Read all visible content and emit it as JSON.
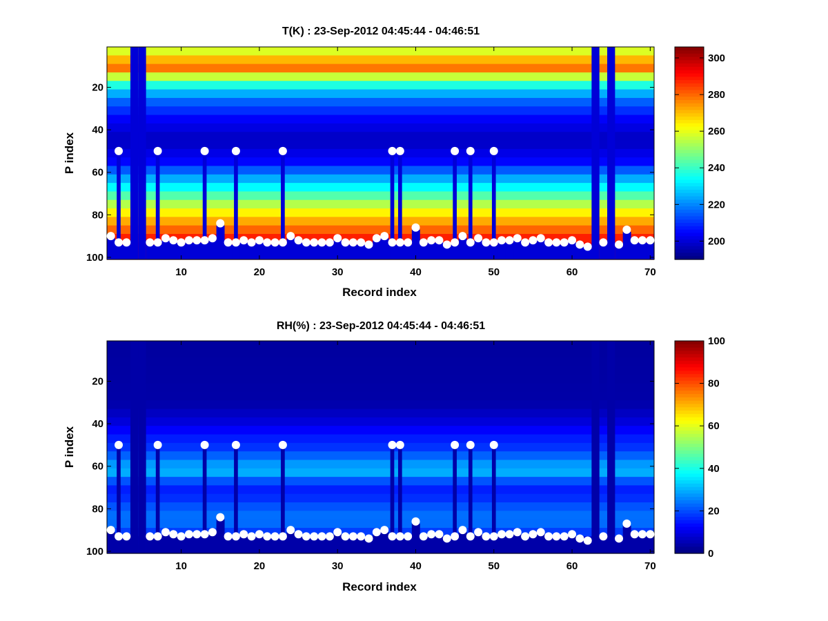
{
  "chart_data": [
    {
      "type": "heatmap",
      "title": "T(K) : 23-Sep-2012 04:45:44 - 04:46:51",
      "xlabel": "Record index",
      "ylabel": "P index",
      "xlim": [
        0.5,
        70.5
      ],
      "ylim": [
        1,
        101
      ],
      "y_reversed": true,
      "x_ticks": [
        10,
        20,
        30,
        40,
        50,
        60,
        70
      ],
      "y_ticks": [
        20,
        40,
        60,
        80,
        100
      ],
      "colormap": "jet",
      "colorbar": {
        "min": 190,
        "max": 306,
        "ticks": [
          200,
          220,
          240,
          260,
          280,
          300
        ]
      },
      "profile": {
        "p": [
          1,
          5,
          8,
          10,
          12,
          18,
          25,
          35,
          45,
          55,
          62,
          70,
          75,
          80,
          85,
          88,
          92,
          96,
          101
        ],
        "value": [
          255,
          262,
          275,
          284,
          272,
          240,
          218,
          204,
          197,
          205,
          222,
          240,
          254,
          266,
          276,
          282,
          290,
          294,
          296
        ]
      },
      "fill_value": 200,
      "missing_columns": [
        4,
        5,
        63,
        65
      ],
      "markers": {
        "x": [
          1,
          2,
          3,
          6,
          7,
          8,
          9,
          10,
          11,
          12,
          13,
          14,
          15,
          16,
          17,
          18,
          19,
          20,
          21,
          22,
          23,
          24,
          25,
          26,
          27,
          28,
          29,
          30,
          31,
          32,
          33,
          34,
          35,
          36,
          37,
          38,
          39,
          40,
          41,
          42,
          43,
          44,
          45,
          46,
          47,
          48,
          49,
          50,
          51,
          52,
          53,
          54,
          55,
          56,
          57,
          58,
          59,
          60,
          61,
          62,
          64,
          66,
          67,
          68,
          69,
          70
        ],
        "y": [
          90,
          93,
          93,
          93,
          93,
          91,
          92,
          93,
          92,
          92,
          92,
          91,
          84,
          93,
          93,
          92,
          93,
          92,
          93,
          93,
          93,
          90,
          92,
          93,
          93,
          93,
          93,
          91,
          93,
          93,
          93,
          94,
          91,
          90,
          93,
          93,
          93,
          86,
          93,
          92,
          92,
          94,
          93,
          90,
          93,
          91,
          93,
          93,
          92,
          92,
          91,
          93,
          92,
          91,
          93,
          93,
          93,
          92,
          94,
          95,
          93,
          94,
          87,
          92,
          92,
          92
        ],
        "x_upper": [
          2,
          7,
          13,
          17,
          23,
          37,
          38,
          45,
          47,
          50
        ],
        "y_upper": [
          50,
          50,
          50,
          50,
          50,
          50,
          50,
          50,
          50,
          50
        ]
      }
    },
    {
      "type": "heatmap",
      "title": "RH(%) : 23-Sep-2012 04:45:44 - 04:46:51",
      "xlabel": "Record index",
      "ylabel": "P index",
      "xlim": [
        0.5,
        70.5
      ],
      "ylim": [
        1,
        101
      ],
      "y_reversed": true,
      "x_ticks": [
        10,
        20,
        30,
        40,
        50,
        60,
        70
      ],
      "y_ticks": [
        20,
        40,
        60,
        80,
        100
      ],
      "colormap": "jet",
      "colorbar": {
        "min": 0,
        "max": 100,
        "ticks": [
          0,
          20,
          40,
          60,
          80,
          100
        ]
      },
      "profile": {
        "p": [
          1,
          30,
          38,
          45,
          52,
          58,
          62,
          66,
          72,
          78,
          84,
          90,
          94,
          101
        ],
        "value": [
          3,
          4,
          8,
          14,
          18,
          26,
          32,
          22,
          14,
          20,
          24,
          22,
          8,
          5
        ]
      },
      "fill_value": 4,
      "missing_columns": [
        4,
        5,
        63,
        65
      ],
      "markers": {
        "x": [
          1,
          2,
          3,
          6,
          7,
          8,
          9,
          10,
          11,
          12,
          13,
          14,
          15,
          16,
          17,
          18,
          19,
          20,
          21,
          22,
          23,
          24,
          25,
          26,
          27,
          28,
          29,
          30,
          31,
          32,
          33,
          34,
          35,
          36,
          37,
          38,
          39,
          40,
          41,
          42,
          43,
          44,
          45,
          46,
          47,
          48,
          49,
          50,
          51,
          52,
          53,
          54,
          55,
          56,
          57,
          58,
          59,
          60,
          61,
          62,
          64,
          66,
          67,
          68,
          69,
          70
        ],
        "y": [
          90,
          93,
          93,
          93,
          93,
          91,
          92,
          93,
          92,
          92,
          92,
          91,
          84,
          93,
          93,
          92,
          93,
          92,
          93,
          93,
          93,
          90,
          92,
          93,
          93,
          93,
          93,
          91,
          93,
          93,
          93,
          94,
          91,
          90,
          93,
          93,
          93,
          86,
          93,
          92,
          92,
          94,
          93,
          90,
          93,
          91,
          93,
          93,
          92,
          92,
          91,
          93,
          92,
          91,
          93,
          93,
          93,
          92,
          94,
          95,
          93,
          94,
          87,
          92,
          92,
          92
        ],
        "x_upper": [
          2,
          7,
          13,
          17,
          23,
          37,
          38,
          45,
          47,
          50
        ],
        "y_upper": [
          50,
          50,
          50,
          50,
          50,
          50,
          50,
          50,
          50,
          50
        ]
      }
    }
  ]
}
